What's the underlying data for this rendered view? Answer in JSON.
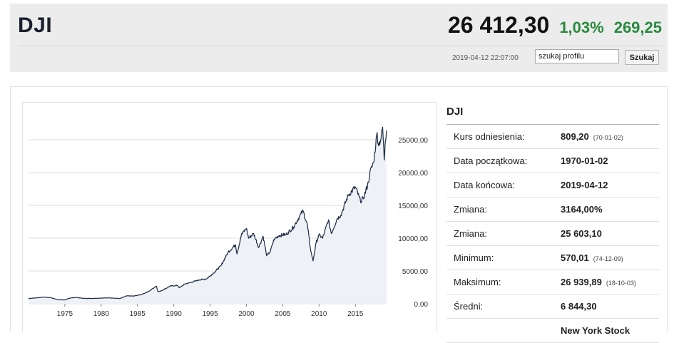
{
  "header": {
    "ticker": "DJI",
    "price": "26 412,30",
    "change_pct": "1,03%",
    "change_abs": "269,25",
    "timestamp": "2019-04-12 22:07:00",
    "search": {
      "value": "szukaj profilu",
      "button_label": "Szukaj"
    },
    "colors": {
      "positive": "#2a8a3e",
      "background": "#ececec"
    }
  },
  "chart_data": {
    "type": "area",
    "title": "",
    "xlabel": "",
    "ylabel": "",
    "x_ticks": [
      "1975",
      "1980",
      "1985",
      "1990",
      "1995",
      "2000",
      "2005",
      "2010",
      "2015"
    ],
    "y_ticks": [
      "0,00",
      "5000,00",
      "10000,00",
      "15000,00",
      "20000,00",
      "25000,00"
    ],
    "xlim": [
      1970,
      2019.3
    ],
    "ylim": [
      0,
      30000
    ],
    "grid": "horizontal",
    "series": [
      {
        "color": "#1a2a44",
        "points": [
          [
            1970.0,
            809
          ],
          [
            1971.0,
            890
          ],
          [
            1972.0,
            1020
          ],
          [
            1973.0,
            950
          ],
          [
            1974.0,
            640
          ],
          [
            1974.95,
            580
          ],
          [
            1975.5,
            820
          ],
          [
            1976.5,
            980
          ],
          [
            1977.5,
            830
          ],
          [
            1978.5,
            810
          ],
          [
            1979.5,
            840
          ],
          [
            1980.5,
            900
          ],
          [
            1981.5,
            880
          ],
          [
            1982.6,
            800
          ],
          [
            1983.5,
            1200
          ],
          [
            1984.5,
            1180
          ],
          [
            1985.5,
            1400
          ],
          [
            1986.5,
            1850
          ],
          [
            1987.6,
            2700
          ],
          [
            1987.85,
            1800
          ],
          [
            1988.5,
            2100
          ],
          [
            1989.5,
            2700
          ],
          [
            1990.5,
            2800
          ],
          [
            1990.8,
            2450
          ],
          [
            1991.5,
            3000
          ],
          [
            1992.5,
            3300
          ],
          [
            1993.5,
            3650
          ],
          [
            1994.5,
            3800
          ],
          [
            1995.5,
            4700
          ],
          [
            1996.5,
            5800
          ],
          [
            1997.5,
            7900
          ],
          [
            1998.5,
            9000
          ],
          [
            1998.7,
            7600
          ],
          [
            1999.3,
            10500
          ],
          [
            2000.0,
            11500
          ],
          [
            2000.3,
            10000
          ],
          [
            2001.0,
            10700
          ],
          [
            2001.7,
            8600
          ],
          [
            2002.3,
            10300
          ],
          [
            2002.8,
            7300
          ],
          [
            2003.3,
            8000
          ],
          [
            2003.8,
            9800
          ],
          [
            2004.5,
            10400
          ],
          [
            2005.5,
            10600
          ],
          [
            2006.5,
            11700
          ],
          [
            2007.3,
            13300
          ],
          [
            2007.8,
            14160
          ],
          [
            2008.4,
            12000
          ],
          [
            2008.8,
            8500
          ],
          [
            2009.17,
            6547
          ],
          [
            2009.6,
            9300
          ],
          [
            2010.0,
            10500
          ],
          [
            2010.5,
            10000
          ],
          [
            2011.3,
            12800
          ],
          [
            2011.7,
            10700
          ],
          [
            2012.5,
            13000
          ],
          [
            2013.0,
            13500
          ],
          [
            2014.0,
            16500
          ],
          [
            2015.0,
            17800
          ],
          [
            2015.7,
            15700
          ],
          [
            2016.1,
            16000
          ],
          [
            2016.8,
            18500
          ],
          [
            2017.0,
            20000
          ],
          [
            2017.5,
            21500
          ],
          [
            2018.0,
            26100
          ],
          [
            2018.15,
            24300
          ],
          [
            2018.5,
            25000
          ],
          [
            2018.76,
            26939
          ],
          [
            2018.98,
            21900
          ],
          [
            2019.1,
            24500
          ],
          [
            2019.28,
            26412
          ]
        ]
      }
    ]
  },
  "info": {
    "title": "DJI",
    "rows": [
      {
        "label": "Kurs odniesienia:",
        "value": "809,20",
        "note": "(70-01-02)"
      },
      {
        "label": "Data początkowa:",
        "value": "1970-01-02",
        "note": ""
      },
      {
        "label": "Data końcowa:",
        "value": "2019-04-12",
        "note": ""
      },
      {
        "label": "Zmiana:",
        "value": "3164,00%",
        "note": ""
      },
      {
        "label": "Zmiana:",
        "value": "25 603,10",
        "note": ""
      },
      {
        "label": "Minimum:",
        "value": "570,01",
        "note": "(74-12-09)"
      },
      {
        "label": "Maksimum:",
        "value": "26 939,89",
        "note": "(18-10-03)"
      },
      {
        "label": "Średni:",
        "value": "6 844,30",
        "note": ""
      },
      {
        "label": "",
        "value": "New York Stock",
        "note": ""
      }
    ]
  }
}
